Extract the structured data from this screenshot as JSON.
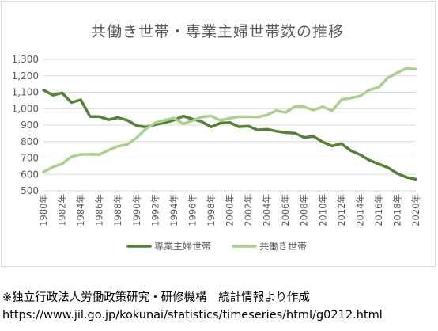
{
  "chart_data": {
    "type": "line",
    "title": "共働き世帯・専業主婦世帯数の推移",
    "x": [
      1980,
      1981,
      1982,
      1983,
      1984,
      1985,
      1986,
      1987,
      1988,
      1989,
      1990,
      1991,
      1992,
      1993,
      1994,
      1995,
      1996,
      1997,
      1998,
      1999,
      2000,
      2001,
      2002,
      2003,
      2004,
      2005,
      2006,
      2007,
      2008,
      2009,
      2010,
      2011,
      2012,
      2013,
      2014,
      2015,
      2016,
      2017,
      2018,
      2019,
      2020
    ],
    "x_tick_labels": [
      "1980年",
      "1982年",
      "1984年",
      "1986年",
      "1988年",
      "1990年",
      "1992年",
      "1994年",
      "1996年",
      "1998年",
      "2000年",
      "2002年",
      "2004年",
      "2006年",
      "2008年",
      "2010年",
      "2012年",
      "2014年",
      "2016年",
      "2018年",
      "2020年"
    ],
    "ylim": [
      500,
      1300
    ],
    "y_ticks": [
      "1,300",
      "1,200",
      "1,100",
      "1,000",
      "900",
      "800",
      "700",
      "600",
      "500"
    ],
    "grid": true,
    "legend_position": "bottom",
    "series": [
      {
        "name": "専業主婦世帯",
        "color": "#548235",
        "values": [
          1114,
          1082,
          1096,
          1038,
          1054,
          952,
          952,
          933,
          946,
          930,
          897,
          888,
          903,
          915,
          930,
          955,
          937,
          921,
          889,
          912,
          916,
          890,
          894,
          870,
          875,
          863,
          854,
          851,
          825,
          831,
          797,
          773,
          787,
          745,
          720,
          687,
          664,
          641,
          606,
          582,
          571
        ]
      },
      {
        "name": "共働き世帯",
        "color": "#a9d08e",
        "values": [
          614,
          645,
          664,
          708,
          721,
          722,
          720,
          748,
          771,
          783,
          823,
          877,
          914,
          929,
          943,
          908,
          927,
          949,
          956,
          929,
          942,
          951,
          951,
          949,
          961,
          988,
          977,
          1013,
          1011,
          991,
          1012,
          987,
          1054,
          1065,
          1077,
          1114,
          1129,
          1188,
          1219,
          1245,
          1240
        ]
      }
    ]
  },
  "footer": {
    "source": "※独立行政法人労働政策研究・研修機構　統計情報より作成",
    "url": "https://www.jil.go.jp/kokunai/statistics/timeseries/html/g0212.html"
  }
}
